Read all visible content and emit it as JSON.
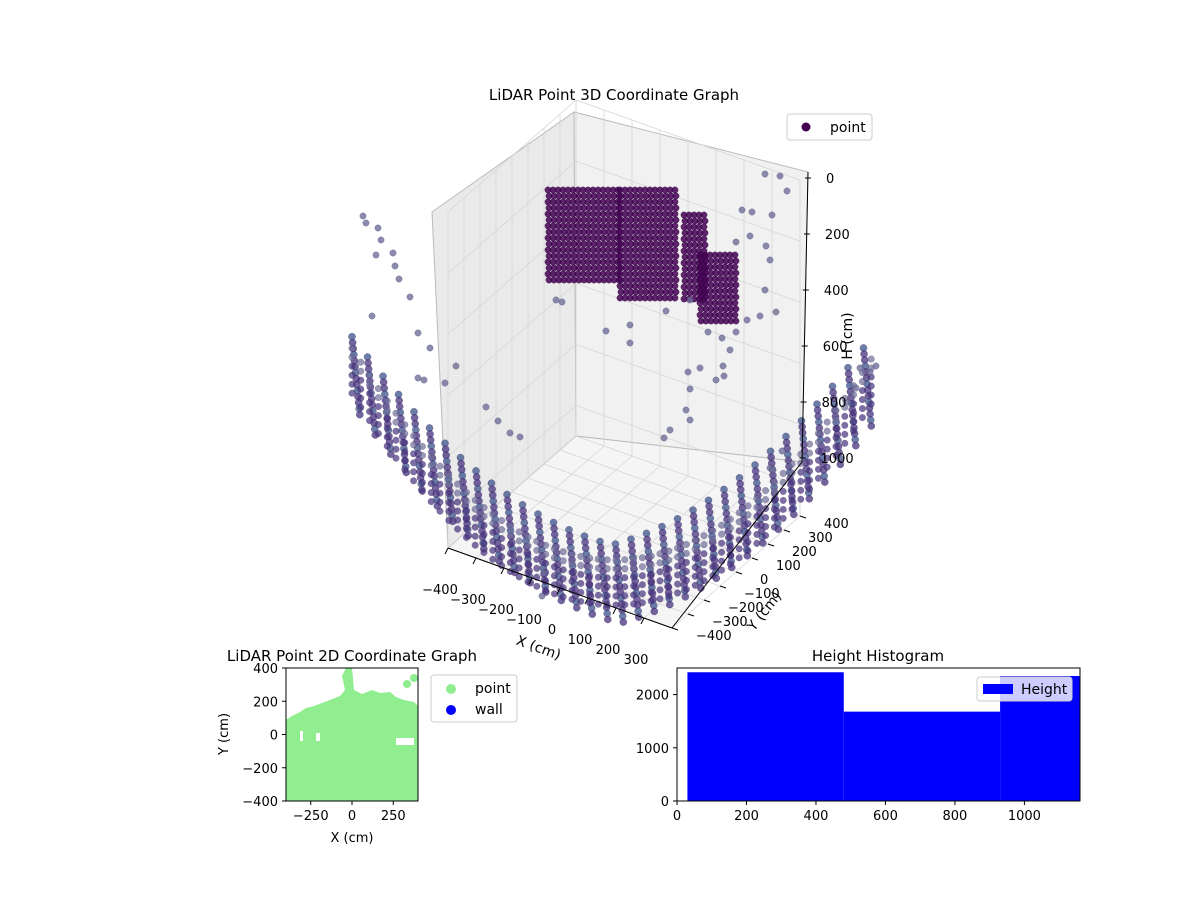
{
  "chart_data": [
    {
      "type": "scatter",
      "title": "LiDAR Point 3D Coordinate Graph",
      "xlabel": "X (cm)",
      "ylabel": "Y (cm)",
      "zlabel": "H (cm)",
      "xlim": [
        -400,
        400
      ],
      "ylim": [
        -400,
        400
      ],
      "zlim": [
        1100,
        0
      ],
      "x_ticks": [
        "−400",
        "−300",
        "−200",
        "−100",
        "0",
        "100",
        "200",
        "300"
      ],
      "y_ticks": [
        "−400",
        "−300",
        "−200",
        "−100",
        "0",
        "100",
        "200",
        "300",
        "400"
      ],
      "z_ticks": [
        "0",
        "200",
        "400",
        "600",
        "800",
        "1000"
      ],
      "legend": [
        {
          "label": "point",
          "color": "#440154"
        }
      ],
      "legend_position": "top-right",
      "grid": true,
      "colormap": "viridis"
    },
    {
      "type": "scatter",
      "title": "LiDAR Point 2D Coordinate Graph",
      "xlabel": "X (cm)",
      "ylabel": "Y (cm)",
      "xlim": [
        -400,
        400
      ],
      "ylim": [
        -400,
        400
      ],
      "x_ticks": [
        "−250",
        "0",
        "250"
      ],
      "y_ticks": [
        "−400",
        "−200",
        "0",
        "200",
        "400"
      ],
      "series": [
        {
          "name": "point",
          "color": "#90ee90"
        },
        {
          "name": "wall",
          "color": "#0000ff"
        }
      ],
      "legend_position": "outside-right",
      "grid": false
    },
    {
      "type": "bar",
      "title": "Height Histogram",
      "xlabel": "",
      "ylabel": "",
      "xlim": [
        0,
        1160
      ],
      "ylim": [
        0,
        2500
      ],
      "x_ticks": [
        "0",
        "200",
        "400",
        "600",
        "800",
        "1000"
      ],
      "y_ticks": [
        "0",
        "1000",
        "2000"
      ],
      "bins": [
        {
          "from": 30,
          "to": 480,
          "count": 2420
        },
        {
          "from": 480,
          "to": 930,
          "count": 1680
        },
        {
          "from": 930,
          "to": 1160,
          "count": 2350
        }
      ],
      "series": [
        {
          "name": "Height",
          "color": "#0000ff"
        }
      ],
      "legend_position": "top-right",
      "grid": false
    }
  ]
}
